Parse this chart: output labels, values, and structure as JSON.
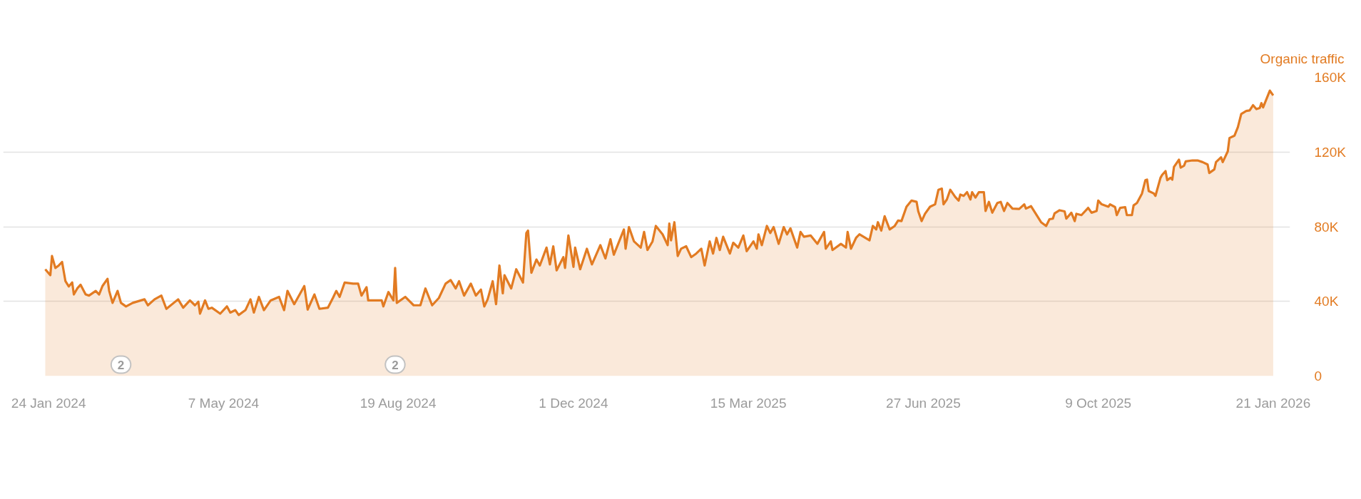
{
  "chart_data": {
    "type": "area",
    "ylabel": "Organic traffic",
    "xlim": [
      "2023-12-28",
      "2026-01-31"
    ],
    "ylim": [
      0,
      160000
    ],
    "xticks": [
      {
        "value": "2024-01-24",
        "label": "24 Jan 2024"
      },
      {
        "value": "2024-05-07",
        "label": "7 May 2024"
      },
      {
        "value": "2024-08-19",
        "label": "19 Aug 2024"
      },
      {
        "value": "2024-12-01",
        "label": "1 Dec 2024"
      },
      {
        "value": "2025-03-15",
        "label": "15 Mar 2025"
      },
      {
        "value": "2025-06-27",
        "label": "27 Jun 2025"
      },
      {
        "value": "2025-10-09",
        "label": "9 Oct 2025"
      },
      {
        "value": "2026-01-21",
        "label": "21 Jan 2026"
      }
    ],
    "yticks": [
      0,
      {
        "value": 40000,
        "label": "40K"
      },
      {
        "value": 80000,
        "label": "80K"
      },
      {
        "value": 120000,
        "label": "120K"
      },
      {
        "value": 160000,
        "label": "160K"
      }
    ],
    "grid": "y",
    "annotations": [
      {
        "text": "2",
        "x": "2024-03-07",
        "y": 0
      },
      {
        "text": "2",
        "x": "2024-08-17",
        "y": 0
      }
    ],
    "x": [
      "2024-01-22",
      "2024-01-25",
      "2024-01-26",
      "2024-01-28",
      "2024-01-30",
      "2024-02-01",
      "2024-02-03",
      "2024-02-05",
      "2024-02-07",
      "2024-02-08",
      "2024-02-10",
      "2024-02-12",
      "2024-02-15",
      "2024-02-17",
      "2024-02-21",
      "2024-02-23",
      "2024-02-25",
      "2024-02-28",
      "2024-02-29",
      "2024-03-02",
      "2024-03-05",
      "2024-03-07",
      "2024-03-10",
      "2024-03-14",
      "2024-03-21",
      "2024-03-23",
      "2024-03-27",
      "2024-03-31",
      "2024-04-03",
      "2024-04-10",
      "2024-04-13",
      "2024-04-17",
      "2024-04-20",
      "2024-04-22",
      "2024-04-23",
      "2024-04-26",
      "2024-04-28",
      "2024-04-30",
      "2024-05-05",
      "2024-05-09",
      "2024-05-11",
      "2024-05-14",
      "2024-05-16",
      "2024-05-20",
      "2024-05-23",
      "2024-05-25",
      "2024-05-28",
      "2024-05-31",
      "2024-06-04",
      "2024-06-09",
      "2024-06-12",
      "2024-06-14",
      "2024-06-18",
      "2024-06-24",
      "2024-06-26",
      "2024-06-30",
      "2024-07-03",
      "2024-07-08",
      "2024-07-11",
      "2024-07-13",
      "2024-07-15",
      "2024-07-18",
      "2024-07-23",
      "2024-07-26",
      "2024-07-28",
      "2024-07-31",
      "2024-08-01",
      "2024-08-09",
      "2024-08-10",
      "2024-08-13",
      "2024-08-16",
      "2024-08-17",
      "2024-08-18",
      "2024-08-23",
      "2024-08-28",
      "2024-09-01",
      "2024-09-04",
      "2024-09-08",
      "2024-09-12",
      "2024-09-16",
      "2024-09-19",
      "2024-09-22",
      "2024-09-24",
      "2024-09-27",
      "2024-10-01",
      "2024-10-04",
      "2024-10-07",
      "2024-10-09",
      "2024-10-11",
      "2024-10-14",
      "2024-10-16",
      "2024-10-18",
      "2024-10-20",
      "2024-10-21",
      "2024-10-25",
      "2024-10-28",
      "2024-11-01",
      "2024-11-03",
      "2024-11-04",
      "2024-11-06",
      "2024-11-09",
      "2024-11-11",
      "2024-11-15",
      "2024-11-17",
      "2024-11-19",
      "2024-11-21",
      "2024-11-25",
      "2024-11-26",
      "2024-11-28",
      "2024-12-01",
      "2024-12-02",
      "2024-12-05",
      "2024-12-09",
      "2024-12-12",
      "2024-12-17",
      "2024-12-20",
      "2024-12-23",
      "2024-12-25",
      "2024-12-31",
      "2025-01-01",
      "2025-01-03",
      "2025-01-06",
      "2025-01-10",
      "2025-01-12",
      "2025-01-14",
      "2025-01-17",
      "2025-01-19",
      "2025-01-23",
      "2025-01-26",
      "2025-01-27",
      "2025-01-28",
      "2025-01-30",
      "2025-02-01",
      "2025-02-03",
      "2025-02-06",
      "2025-02-09",
      "2025-02-12",
      "2025-02-15",
      "2025-02-17",
      "2025-02-20",
      "2025-02-22",
      "2025-02-24",
      "2025-02-26",
      "2025-02-28",
      "2025-03-04",
      "2025-03-06",
      "2025-03-09",
      "2025-03-12",
      "2025-03-14",
      "2025-03-18",
      "2025-03-20",
      "2025-03-21",
      "2025-03-23",
      "2025-03-26",
      "2025-03-28",
      "2025-03-30",
      "2025-04-02",
      "2025-04-05",
      "2025-04-07",
      "2025-04-09",
      "2025-04-13",
      "2025-04-15",
      "2025-04-17",
      "2025-04-21",
      "2025-04-25",
      "2025-04-29",
      "2025-04-30",
      "2025-05-03",
      "2025-05-04",
      "2025-05-09",
      "2025-05-12",
      "2025-05-13",
      "2025-05-15",
      "2025-05-18",
      "2025-05-20",
      "2025-05-26",
      "2025-05-28",
      "2025-05-30",
      "2025-05-31",
      "2025-06-02",
      "2025-06-04",
      "2025-06-07",
      "2025-06-10",
      "2025-06-12",
      "2025-06-14",
      "2025-06-17",
      "2025-06-20",
      "2025-06-23",
      "2025-06-24",
      "2025-06-26",
      "2025-06-28",
      "2025-07-01",
      "2025-07-04",
      "2025-07-06",
      "2025-07-08",
      "2025-07-09",
      "2025-07-11",
      "2025-07-13",
      "2025-07-16",
      "2025-07-18",
      "2025-07-19",
      "2025-07-21",
      "2025-07-23",
      "2025-07-25",
      "2025-07-26",
      "2025-07-28",
      "2025-07-30",
      "2025-08-02",
      "2025-08-03",
      "2025-08-05",
      "2025-08-07",
      "2025-08-10",
      "2025-08-12",
      "2025-08-14",
      "2025-08-16",
      "2025-08-19",
      "2025-08-23",
      "2025-08-26",
      "2025-08-27",
      "2025-08-30",
      "2025-09-05",
      "2025-09-08",
      "2025-09-10",
      "2025-09-12",
      "2025-09-13",
      "2025-09-16",
      "2025-09-19",
      "2025-09-20",
      "2025-09-23",
      "2025-09-25",
      "2025-09-26",
      "2025-09-29",
      "2025-10-03",
      "2025-10-05",
      "2025-10-08",
      "2025-10-09",
      "2025-10-11",
      "2025-10-15",
      "2025-10-16",
      "2025-10-19",
      "2025-10-20",
      "2025-10-22",
      "2025-10-25",
      "2025-10-26",
      "2025-10-29",
      "2025-10-30",
      "2025-11-01",
      "2025-11-04",
      "2025-11-06",
      "2025-11-07",
      "2025-11-08",
      "2025-11-11",
      "2025-11-12",
      "2025-11-15",
      "2025-11-16",
      "2025-11-18",
      "2025-11-19",
      "2025-11-21",
      "2025-11-22",
      "2025-11-23",
      "2025-11-26",
      "2025-11-27",
      "2025-11-29",
      "2025-11-30",
      "2025-12-04",
      "2025-12-07",
      "2025-12-10",
      "2025-12-13",
      "2025-12-14",
      "2025-12-17",
      "2025-12-18",
      "2025-12-21",
      "2025-12-22",
      "2025-12-25",
      "2025-12-26",
      "2025-12-29",
      "2025-12-31",
      "2026-01-02",
      "2026-01-05",
      "2026-01-07",
      "2026-01-09",
      "2026-01-11",
      "2026-01-13",
      "2026-01-14",
      "2026-01-15",
      "2026-01-19",
      "2026-01-21"
    ],
    "series": [
      {
        "color": "#e27b22",
        "values": [
          57200,
          54000,
          64300,
          57900,
          59200,
          61100,
          50800,
          48000,
          50100,
          43700,
          46900,
          48900,
          43700,
          43100,
          45600,
          43700,
          48200,
          52100,
          45600,
          39200,
          45600,
          39200,
          37300,
          39200,
          41100,
          37900,
          41100,
          43100,
          36000,
          41100,
          36600,
          40500,
          37900,
          39800,
          33400,
          40500,
          36000,
          36600,
          33400,
          37300,
          34000,
          35300,
          32700,
          35300,
          41100,
          34000,
          42400,
          35300,
          40500,
          42400,
          35300,
          45600,
          38500,
          48200,
          35600,
          43700,
          36000,
          36600,
          41800,
          45600,
          42400,
          50100,
          49500,
          49500,
          43100,
          47600,
          40500,
          40500,
          37300,
          45000,
          40500,
          57900,
          39200,
          42400,
          37900,
          37900,
          46900,
          37900,
          41800,
          49500,
          51400,
          46900,
          50800,
          43100,
          49500,
          43100,
          46300,
          37300,
          41100,
          50800,
          38500,
          59200,
          44300,
          54000,
          46900,
          57200,
          50100,
          76600,
          77900,
          55300,
          62400,
          59200,
          68800,
          59800,
          69500,
          56600,
          63700,
          57900,
          75300,
          58500,
          68800,
          57200,
          68200,
          59800,
          70100,
          63000,
          73300,
          65000,
          78500,
          68200,
          79800,
          72100,
          68800,
          77200,
          67500,
          72100,
          80400,
          75900,
          70100,
          81700,
          72700,
          82400,
          64300,
          68200,
          69500,
          63700,
          65600,
          68200,
          59200,
          72100,
          65600,
          74000,
          67500,
          74600,
          65600,
          71400,
          68800,
          75300,
          66900,
          72100,
          68200,
          75900,
          70100,
          80400,
          76600,
          79800,
          70800,
          79800,
          75900,
          79100,
          68800,
          77200,
          74600,
          75300,
          70800,
          77200,
          68200,
          72100,
          67500,
          70800,
          68800,
          77200,
          68200,
          74000,
          75900,
          72700,
          80400,
          78500,
          82400,
          77900,
          85600,
          78500,
          80400,
          83300,
          83000,
          90700,
          94000,
          93300,
          88200,
          83000,
          86900,
          90700,
          92000,
          99800,
          100400,
          92000,
          94600,
          99800,
          95900,
          94000,
          97200,
          96500,
          98500,
          94600,
          98500,
          95600,
          98500,
          98500,
          88400,
          93300,
          87500,
          92700,
          93300,
          88400,
          92700,
          89700,
          89500,
          92000,
          89700,
          91000,
          82400,
          80400,
          84000,
          84300,
          87100,
          88800,
          88200,
          84300,
          87500,
          83000,
          86900,
          86200,
          90100,
          87500,
          88400,
          94000,
          92000,
          90700,
          92000,
          90500,
          86200,
          90100,
          90500,
          86200,
          86200,
          91400,
          92700,
          97800,
          104900,
          105200,
          99100,
          97800,
          96500,
          106200,
          107800,
          109800,
          104900,
          106200,
          105200,
          112000,
          115900,
          111600,
          112700,
          115000,
          115500,
          115500,
          114600,
          113300,
          108800,
          110700,
          114600,
          117200,
          114600,
          120400,
          127500,
          128800,
          133300,
          140400,
          142000,
          142300,
          145100,
          143000,
          143600,
          146200,
          143900,
          152900,
          150300
        ]
      }
    ]
  }
}
